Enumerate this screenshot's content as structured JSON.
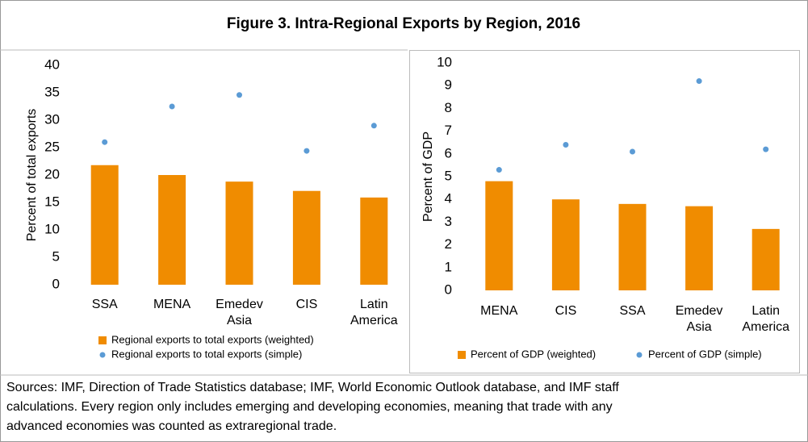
{
  "title": "Figure 3. Intra-Regional Exports by Region, 2016",
  "note": [
    "Sources: IMF, Direction of Trade Statistics database; IMF, World Economic Outlook database, and IMF staff",
    "calculations. Every region only includes emerging and developing economies, meaning that trade with any",
    "advanced economies was counted as extraregional trade."
  ],
  "chart_data": [
    {
      "type": "bar",
      "y_label": "Percent of total exports",
      "categories": [
        "SSA",
        "MENA",
        "Emedev Asia",
        "CIS",
        "Latin America"
      ],
      "series": [
        {
          "name": "Regional exports to total exports (weighted)",
          "color": "#f08c00",
          "type": "bar",
          "values": [
            21.8,
            20.0,
            18.8,
            17.1,
            15.9
          ]
        },
        {
          "name": "Regional exports to total exports (simple)",
          "color": "#5b9bd5",
          "type": "scatter",
          "values": [
            26.0,
            32.5,
            34.6,
            24.4,
            29.0
          ]
        }
      ],
      "ylim": [
        0,
        40
      ],
      "yticks": [
        0,
        5,
        10,
        15,
        20,
        25,
        30,
        35,
        40
      ],
      "legend": "bottom-vertical"
    },
    {
      "type": "bar",
      "y_label": "Percent of GDP",
      "categories": [
        "MENA",
        "CIS",
        "SSA",
        "Emedev Asia",
        "Latin America"
      ],
      "series": [
        {
          "name": "Percent of GDP (weighted)",
          "color": "#f08c00",
          "type": "bar",
          "values": [
            4.8,
            4.0,
            3.8,
            3.7,
            2.7
          ]
        },
        {
          "name": "Percent of GDP (simple)",
          "color": "#5b9bd5",
          "type": "scatter",
          "values": [
            5.3,
            6.4,
            6.1,
            9.2,
            6.2
          ]
        }
      ],
      "ylim": [
        0,
        10
      ],
      "yticks": [
        0,
        1,
        2,
        3,
        4,
        5,
        6,
        7,
        8,
        9,
        10
      ],
      "legend": "bottom-horizontal"
    }
  ]
}
